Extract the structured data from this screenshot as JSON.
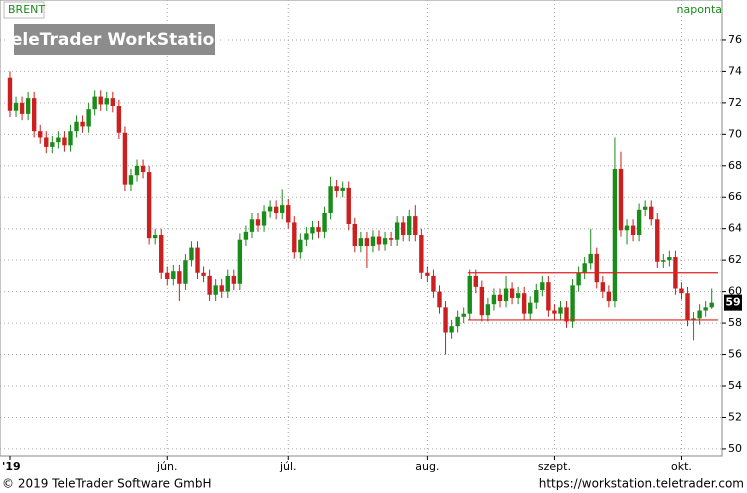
{
  "chart_data": {
    "type": "candlestick",
    "symbol": "BRENT",
    "period": "naponta",
    "logo": "TeleTrader WorkStation",
    "footer_left": "© 2019 TeleTrader Software GmbH",
    "footer_right": "https://workstation.teletrader.com",
    "up_color": "#1a8c1a",
    "down_color": "#cc1f1f",
    "level_color": "#e02020",
    "open": [
      73.6,
      71.5,
      72.0,
      71.3,
      72.3,
      70.2,
      69.8,
      69.2,
      69.5,
      69.8,
      69.3,
      70.2,
      70.8,
      70.5,
      71.6,
      72.4,
      71.9,
      72.3,
      71.8,
      70.1,
      66.8,
      67.4,
      68.0,
      67.6,
      63.4,
      63.6,
      61.2,
      60.8,
      61.3,
      60.5,
      62.0,
      62.8,
      61.2,
      61.0,
      59.8,
      60.4,
      60.0,
      61.0,
      60.5,
      63.3,
      63.8,
      64.6,
      64.2,
      65.1,
      65.4,
      65.0,
      65.5,
      64.4,
      62.5,
      63.3,
      63.7,
      64.1,
      63.8,
      65.0,
      66.7,
      66.4,
      66.6,
      64.3,
      62.9,
      63.4,
      62.9,
      63.5,
      63.0,
      63.4,
      63.3,
      64.4,
      63.6,
      64.8,
      63.6,
      61.2,
      61.0,
      60.0,
      59.0,
      57.4,
      57.8,
      58.4,
      58.6,
      61.0,
      60.3,
      58.5,
      59.2,
      59.8,
      59.4,
      60.2,
      59.6,
      59.9,
      58.6,
      59.3,
      60.1,
      60.6,
      58.8,
      58.6,
      59.0,
      58.1,
      60.4,
      61.2,
      61.8,
      62.4,
      60.6,
      60.0,
      59.4,
      67.8,
      63.9,
      64.2,
      63.6,
      65.2,
      65.4,
      64.6,
      61.9,
      62.0,
      62.2,
      60.2,
      59.9,
      58.2,
      58.3,
      58.8,
      59.0
    ],
    "high": [
      74.0,
      72.4,
      72.4,
      72.7,
      72.7,
      70.6,
      70.2,
      69.9,
      70.2,
      70.2,
      70.6,
      71.2,
      71.2,
      72.0,
      72.8,
      72.8,
      72.7,
      72.7,
      72.2,
      70.5,
      67.8,
      68.4,
      68.4,
      68.0,
      64.0,
      64.0,
      61.6,
      61.7,
      61.7,
      62.4,
      63.2,
      63.2,
      61.6,
      61.4,
      60.8,
      60.8,
      61.4,
      61.4,
      63.7,
      64.2,
      65.0,
      65.0,
      65.5,
      65.8,
      65.8,
      66.5,
      65.9,
      64.8,
      63.7,
      64.1,
      64.5,
      64.5,
      65.4,
      67.3,
      67.1,
      67.0,
      67.0,
      64.7,
      63.8,
      63.8,
      63.9,
      63.9,
      63.8,
      63.8,
      64.8,
      64.8,
      65.2,
      65.5,
      64.0,
      61.6,
      61.4,
      60.4,
      59.4,
      58.2,
      58.8,
      59.0,
      61.4,
      61.4,
      60.7,
      59.6,
      60.2,
      60.2,
      61.0,
      60.6,
      60.3,
      60.3,
      59.7,
      60.5,
      61.0,
      61.0,
      59.2,
      59.4,
      59.4,
      60.8,
      61.6,
      62.2,
      64.0,
      62.8,
      61.0,
      60.4,
      69.8,
      68.9,
      64.6,
      64.6,
      65.6,
      65.8,
      65.8,
      65.0,
      62.4,
      62.6,
      62.6,
      60.6,
      60.3,
      58.7,
      59.2,
      59.4,
      60.2
    ],
    "low": [
      71.1,
      71.1,
      70.9,
      70.9,
      69.8,
      69.4,
      68.8,
      68.8,
      69.1,
      68.9,
      68.9,
      69.8,
      70.1,
      70.1,
      71.2,
      71.5,
      71.5,
      71.4,
      69.7,
      66.4,
      66.4,
      67.0,
      67.2,
      63.0,
      63.0,
      60.8,
      60.4,
      60.4,
      59.4,
      60.1,
      61.6,
      60.8,
      60.6,
      59.4,
      59.4,
      59.6,
      59.6,
      60.1,
      60.1,
      62.9,
      63.4,
      63.8,
      63.8,
      64.7,
      64.6,
      64.6,
      64.0,
      62.1,
      62.1,
      62.9,
      63.3,
      63.4,
      63.4,
      64.6,
      66.0,
      66.0,
      63.9,
      62.5,
      62.5,
      61.5,
      62.5,
      62.6,
      62.6,
      62.9,
      62.9,
      63.2,
      63.2,
      63.2,
      60.8,
      60.6,
      59.6,
      58.6,
      56.0,
      57.0,
      57.4,
      58.0,
      58.2,
      59.9,
      58.1,
      58.1,
      58.8,
      59.0,
      59.0,
      59.2,
      59.2,
      58.2,
      58.2,
      58.9,
      59.7,
      58.4,
      58.2,
      58.2,
      57.7,
      57.7,
      60.0,
      60.8,
      61.4,
      60.2,
      59.6,
      59.0,
      59.0,
      63.5,
      63.0,
      63.2,
      63.2,
      64.8,
      64.2,
      61.5,
      61.5,
      61.6,
      59.8,
      59.5,
      57.8,
      56.9,
      57.9,
      58.4,
      58.9
    ],
    "close": [
      71.5,
      72.0,
      71.3,
      72.3,
      70.2,
      69.8,
      69.2,
      69.5,
      69.8,
      69.3,
      70.2,
      70.8,
      70.5,
      71.6,
      72.4,
      71.9,
      72.3,
      71.8,
      70.1,
      66.8,
      67.4,
      68.0,
      67.6,
      63.4,
      63.6,
      61.2,
      60.8,
      61.3,
      60.5,
      62.0,
      62.8,
      61.2,
      61.0,
      59.8,
      60.4,
      60.0,
      61.0,
      60.5,
      63.3,
      63.8,
      64.6,
      64.2,
      65.1,
      65.4,
      65.0,
      65.5,
      64.4,
      62.5,
      63.3,
      63.7,
      64.1,
      63.8,
      65.0,
      66.7,
      66.4,
      66.6,
      64.3,
      62.9,
      63.4,
      62.9,
      63.5,
      63.0,
      63.4,
      63.3,
      64.4,
      63.6,
      64.8,
      63.6,
      61.2,
      61.0,
      60.0,
      59.0,
      57.4,
      57.8,
      58.4,
      58.6,
      61.0,
      60.3,
      58.5,
      59.2,
      59.8,
      59.4,
      60.2,
      59.6,
      59.9,
      58.6,
      59.3,
      60.1,
      60.6,
      58.8,
      58.6,
      59.0,
      58.1,
      60.4,
      61.2,
      61.8,
      62.4,
      60.6,
      60.0,
      59.4,
      67.8,
      63.9,
      64.2,
      63.6,
      65.2,
      65.4,
      64.6,
      61.9,
      62.0,
      62.2,
      60.2,
      59.9,
      58.2,
      58.3,
      58.8,
      59.0,
      59.3
    ],
    "levels": [
      61.2,
      58.2
    ],
    "last_price": {
      "value": 59.3,
      "label": "59"
    },
    "xlim": [
      -1.65,
      117.7
    ],
    "xticks": [
      {
        "value": 0,
        "label": "'19"
      },
      {
        "value": 26,
        "label": "jún."
      },
      {
        "value": 46,
        "label": "júl."
      },
      {
        "value": 69,
        "label": "aug."
      },
      {
        "value": 90,
        "label": "szept."
      },
      {
        "value": 111,
        "label": "okt."
      }
    ],
    "ylim": [
      49.55,
      78.54
    ],
    "yticks": [
      50,
      52,
      54,
      56,
      58,
      60,
      62,
      64,
      66,
      68,
      70,
      72,
      74,
      76
    ],
    "grid": true
  }
}
